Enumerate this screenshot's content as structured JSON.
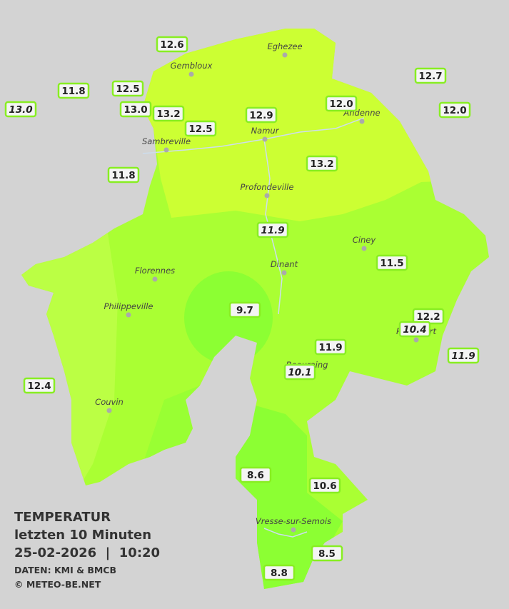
{
  "legend": {
    "title": "TEMPERATUR",
    "period": "letzten 10 Minuten",
    "timestamp": "25-02-2026  |  10:20",
    "source": "DATEN: KMI & BMCB",
    "copyright": "© METEO-BE.NET"
  },
  "towns": [
    "Eghezee",
    "Gembloux",
    "Andenne",
    "Namur",
    "Sambreville",
    "Profondeville",
    "Ciney",
    "Dinant",
    "Florennes",
    "Philippeville",
    "Rochefort",
    "Beauraing",
    "Couvin",
    "Vresse-sur-Semois"
  ],
  "stations": [
    {
      "label": "12.6"
    },
    {
      "label": "12.5"
    },
    {
      "label": "11.8"
    },
    {
      "label": "13.0",
      "italic": true
    },
    {
      "label": "13.0"
    },
    {
      "label": "13.2"
    },
    {
      "label": "12.5"
    },
    {
      "label": "12.9"
    },
    {
      "label": "12.0"
    },
    {
      "label": "12.7"
    },
    {
      "label": "12.0"
    },
    {
      "label": "11.8"
    },
    {
      "label": "13.2"
    },
    {
      "label": "11.9",
      "italic": true
    },
    {
      "label": "11.5"
    },
    {
      "label": "9.7"
    },
    {
      "label": "12.2"
    },
    {
      "label": "10.4",
      "italic": true
    },
    {
      "label": "11.9"
    },
    {
      "label": "11.9",
      "italic": true
    },
    {
      "label": "10.1",
      "italic": true
    },
    {
      "label": "12.4"
    },
    {
      "label": "8.6"
    },
    {
      "label": "10.6"
    },
    {
      "label": "8.5"
    },
    {
      "label": "8.8"
    }
  ]
}
